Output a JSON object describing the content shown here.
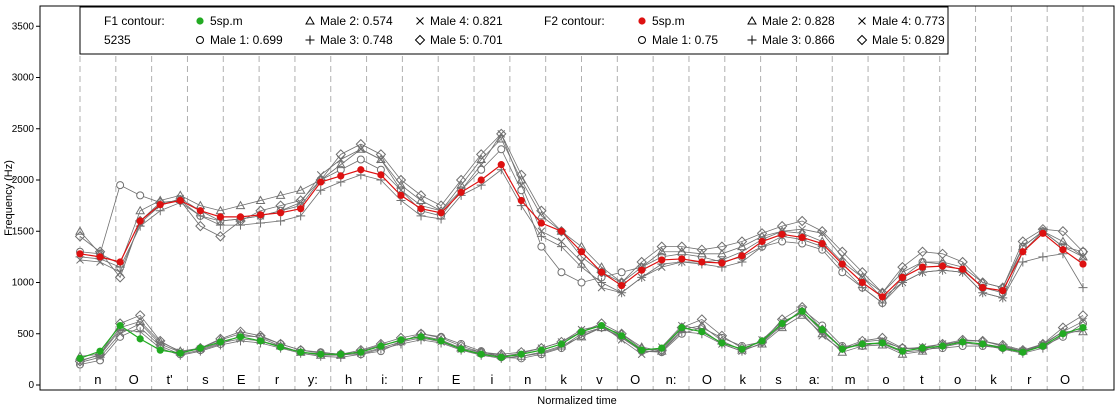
{
  "chart_data": {
    "type": "line",
    "title": "",
    "xlabel": "Normalized time",
    "ylabel": "Frequency (Hz)",
    "ylim": [
      0,
      3600
    ],
    "yticks": [
      0,
      500,
      1000,
      1500,
      2000,
      2500,
      3000,
      3500
    ],
    "grid": "vertical dashed lines at segment boundaries",
    "legend_position": "top",
    "segments": [
      "n",
      "O",
      "t'",
      "s",
      "E",
      "r",
      "y:",
      "h",
      "i:",
      "r",
      "E",
      "i",
      "n",
      "k",
      "v",
      "O",
      "n:",
      "O",
      "k",
      "s",
      "a:",
      "m",
      "o",
      "t",
      "o",
      "k",
      "r",
      "O"
    ],
    "legend": {
      "f1_label": "F1 contour:",
      "f1_id": "5235",
      "f2_label": "F2 contour:",
      "f1_entries": [
        {
          "label": "5sp.m",
          "marker": "filled-circle"
        },
        {
          "label": "Male 1: 0.699",
          "marker": "circle"
        },
        {
          "label": "Male 2: 0.574",
          "marker": "triangle"
        },
        {
          "label": "Male 3: 0.748",
          "marker": "plus"
        },
        {
          "label": "Male 4: 0.821",
          "marker": "x"
        },
        {
          "label": "Male 5: 0.701",
          "marker": "diamond"
        }
      ],
      "f2_entries": [
        {
          "label": "5sp.m",
          "marker": "filled-circle"
        },
        {
          "label": "Male 1: 0.75",
          "marker": "circle"
        },
        {
          "label": "Male 2: 0.828",
          "marker": "triangle"
        },
        {
          "label": "Male 3: 0.866",
          "marker": "plus"
        },
        {
          "label": "Male 4: 0.773",
          "marker": "x"
        },
        {
          "label": "Male 5: 0.829",
          "marker": "diamond"
        }
      ]
    },
    "x_range": [
      0,
      1
    ],
    "f1_main": {
      "name": "5sp.m",
      "color": "#22aa22",
      "x": [
        0.0,
        0.02,
        0.04,
        0.06,
        0.08,
        0.1,
        0.12,
        0.14,
        0.16,
        0.18,
        0.2,
        0.22,
        0.24,
        0.26,
        0.28,
        0.3,
        0.32,
        0.34,
        0.36,
        0.38,
        0.4,
        0.42,
        0.44,
        0.46,
        0.48,
        0.5,
        0.52,
        0.54,
        0.56,
        0.58,
        0.6,
        0.62,
        0.64,
        0.66,
        0.68,
        0.7,
        0.72,
        0.74,
        0.76,
        0.78,
        0.8,
        0.82,
        0.84,
        0.86,
        0.88,
        0.9,
        0.92,
        0.94,
        0.96,
        0.98,
        1.0
      ],
      "y": [
        260,
        330,
        580,
        450,
        340,
        310,
        360,
        420,
        470,
        430,
        370,
        320,
        300,
        300,
        320,
        380,
        440,
        470,
        430,
        350,
        300,
        270,
        300,
        340,
        400,
        520,
        580,
        480,
        340,
        360,
        560,
        520,
        410,
        350,
        430,
        600,
        720,
        540,
        350,
        400,
        410,
        330,
        360,
        380,
        420,
        400,
        360,
        320,
        380,
        500,
        560
      ]
    },
    "f2_main": {
      "name": "5sp.m",
      "color": "#dd1111",
      "x": [
        0.0,
        0.02,
        0.04,
        0.06,
        0.08,
        0.1,
        0.12,
        0.14,
        0.16,
        0.18,
        0.2,
        0.22,
        0.24,
        0.26,
        0.28,
        0.3,
        0.32,
        0.34,
        0.36,
        0.38,
        0.4,
        0.42,
        0.44,
        0.46,
        0.48,
        0.5,
        0.52,
        0.54,
        0.56,
        0.58,
        0.6,
        0.62,
        0.64,
        0.66,
        0.68,
        0.7,
        0.72,
        0.74,
        0.76,
        0.78,
        0.8,
        0.82,
        0.84,
        0.86,
        0.88,
        0.9,
        0.92,
        0.94,
        0.96,
        0.98,
        1.0
      ],
      "y": [
        1280,
        1250,
        1200,
        1600,
        1760,
        1800,
        1700,
        1640,
        1640,
        1660,
        1680,
        1720,
        1980,
        2040,
        2100,
        2050,
        1850,
        1720,
        1680,
        1880,
        2000,
        2150,
        1800,
        1580,
        1500,
        1300,
        1100,
        970,
        1120,
        1220,
        1230,
        1200,
        1190,
        1260,
        1400,
        1470,
        1440,
        1380,
        1180,
        1000,
        860,
        1050,
        1150,
        1160,
        1130,
        950,
        920,
        1300,
        1480,
        1320,
        1180
      ]
    },
    "f1_speakers": [
      {
        "name": "Male 1",
        "marker": "circle",
        "y": [
          200,
          240,
          470,
          560,
          380,
          300,
          340,
          400,
          480,
          470,
          400,
          340,
          320,
          300,
          300,
          330,
          420,
          500,
          470,
          400,
          330,
          270,
          260,
          300,
          360,
          480,
          560,
          470,
          330,
          320,
          500,
          560,
          460,
          380,
          420,
          580,
          740,
          580,
          380,
          380,
          420,
          360,
          350,
          360,
          380,
          380,
          360,
          330,
          380,
          470,
          600
        ]
      },
      {
        "name": "Male 2",
        "marker": "triangle",
        "y": [
          280,
          300,
          560,
          620,
          420,
          330,
          360,
          440,
          500,
          460,
          380,
          320,
          290,
          290,
          330,
          390,
          430,
          480,
          440,
          360,
          320,
          290,
          280,
          320,
          380,
          470,
          560,
          500,
          370,
          330,
          540,
          580,
          430,
          340,
          400,
          560,
          680,
          500,
          320,
          380,
          390,
          300,
          330,
          390,
          430,
          430,
          380,
          330,
          400,
          520,
          520
        ]
      },
      {
        "name": "Male 3",
        "marker": "plus",
        "y": [
          240,
          290,
          540,
          520,
          360,
          290,
          330,
          390,
          430,
          410,
          360,
          310,
          280,
          270,
          300,
          350,
          400,
          440,
          410,
          340,
          290,
          260,
          280,
          310,
          370,
          500,
          560,
          460,
          330,
          330,
          520,
          500,
          400,
          330,
          410,
          590,
          720,
          520,
          360,
          400,
          400,
          320,
          340,
          370,
          410,
          390,
          350,
          310,
          360,
          490,
          540
        ]
      },
      {
        "name": "Male 4",
        "marker": "x",
        "y": [
          220,
          270,
          500,
          600,
          400,
          320,
          350,
          410,
          450,
          430,
          380,
          320,
          300,
          290,
          310,
          360,
          420,
          460,
          420,
          350,
          310,
          280,
          310,
          360,
          420,
          540,
          580,
          440,
          300,
          370,
          580,
          540,
          400,
          330,
          440,
          620,
          700,
          480,
          340,
          420,
          440,
          350,
          370,
          400,
          420,
          400,
          370,
          330,
          390,
          520,
          620
        ]
      },
      {
        "name": "Male 5",
        "marker": "diamond",
        "y": [
          230,
          300,
          600,
          680,
          430,
          320,
          360,
          450,
          520,
          480,
          400,
          340,
          310,
          300,
          340,
          400,
          460,
          500,
          460,
          380,
          320,
          300,
          320,
          360,
          420,
          520,
          600,
          500,
          350,
          340,
          560,
          640,
          480,
          360,
          420,
          640,
          760,
          540,
          360,
          430,
          460,
          360,
          360,
          400,
          440,
          430,
          390,
          340,
          400,
          560,
          680
        ]
      }
    ],
    "f2_speakers": [
      {
        "name": "Male 1",
        "marker": "circle",
        "y": [
          1300,
          1280,
          1950,
          1850,
          1780,
          1800,
          1650,
          1600,
          1620,
          1650,
          1700,
          1750,
          2000,
          2100,
          2200,
          2100,
          1900,
          1700,
          1650,
          1900,
          2100,
          2300,
          1900,
          1350,
          1100,
          1000,
          1050,
          1100,
          1150,
          1250,
          1280,
          1250,
          1200,
          1250,
          1350,
          1400,
          1380,
          1320,
          1100,
          950,
          800,
          1050,
          1200,
          1180,
          1120,
          950,
          900,
          1350,
          1500,
          1350,
          1300
        ]
      },
      {
        "name": "Male 2",
        "marker": "triangle",
        "y": [
          1500,
          1280,
          1180,
          1700,
          1800,
          1850,
          1750,
          1700,
          1750,
          1800,
          1850,
          1900,
          2000,
          2150,
          2300,
          2200,
          1950,
          1800,
          1700,
          1950,
          2200,
          2400,
          2000,
          1650,
          1500,
          1350,
          1150,
          1000,
          1150,
          1300,
          1300,
          1280,
          1280,
          1350,
          1450,
          1500,
          1480,
          1400,
          1200,
          1050,
          900,
          1100,
          1200,
          1200,
          1150,
          1000,
          950,
          1350,
          1500,
          1400,
          1250
        ]
      },
      {
        "name": "Male 3",
        "marker": "plus",
        "y": [
          1250,
          1230,
          1150,
          1550,
          1700,
          1780,
          1650,
          1560,
          1560,
          1580,
          1600,
          1650,
          1900,
          1980,
          2050,
          2000,
          1800,
          1650,
          1620,
          1850,
          1950,
          2100,
          1750,
          1450,
          1350,
          1150,
          1000,
          900,
          1050,
          1180,
          1200,
          1180,
          1150,
          1200,
          1350,
          1450,
          1420,
          1350,
          1150,
          950,
          800,
          1000,
          1100,
          1120,
          1100,
          900,
          850,
          1200,
          1250,
          1280,
          950
        ]
      },
      {
        "name": "Male 4",
        "marker": "x",
        "y": [
          1220,
          1200,
          1100,
          1580,
          1750,
          1820,
          1700,
          1600,
          1620,
          1650,
          1700,
          1780,
          2050,
          2200,
          2300,
          2200,
          1900,
          1750,
          1700,
          1900,
          2150,
          2450,
          1950,
          1500,
          1400,
          1200,
          950,
          900,
          1050,
          1150,
          1200,
          1200,
          1220,
          1300,
          1420,
          1500,
          1520,
          1480,
          1250,
          1050,
          850,
          1000,
          1100,
          1120,
          1100,
          900,
          850,
          1300,
          1500,
          1350,
          1250
        ]
      },
      {
        "name": "Male 5",
        "marker": "diamond",
        "y": [
          1450,
          1300,
          1050,
          1600,
          1780,
          1800,
          1550,
          1450,
          1600,
          1700,
          1750,
          1800,
          2000,
          2250,
          2350,
          2250,
          2000,
          1850,
          1750,
          2000,
          2250,
          2450,
          2050,
          1700,
          1500,
          1250,
          1100,
          1000,
          1200,
          1350,
          1350,
          1320,
          1350,
          1400,
          1480,
          1550,
          1600,
          1500,
          1300,
          1100,
          900,
          1150,
          1300,
          1280,
          1200,
          1000,
          950,
          1400,
          1520,
          1500,
          1300
        ]
      }
    ]
  }
}
